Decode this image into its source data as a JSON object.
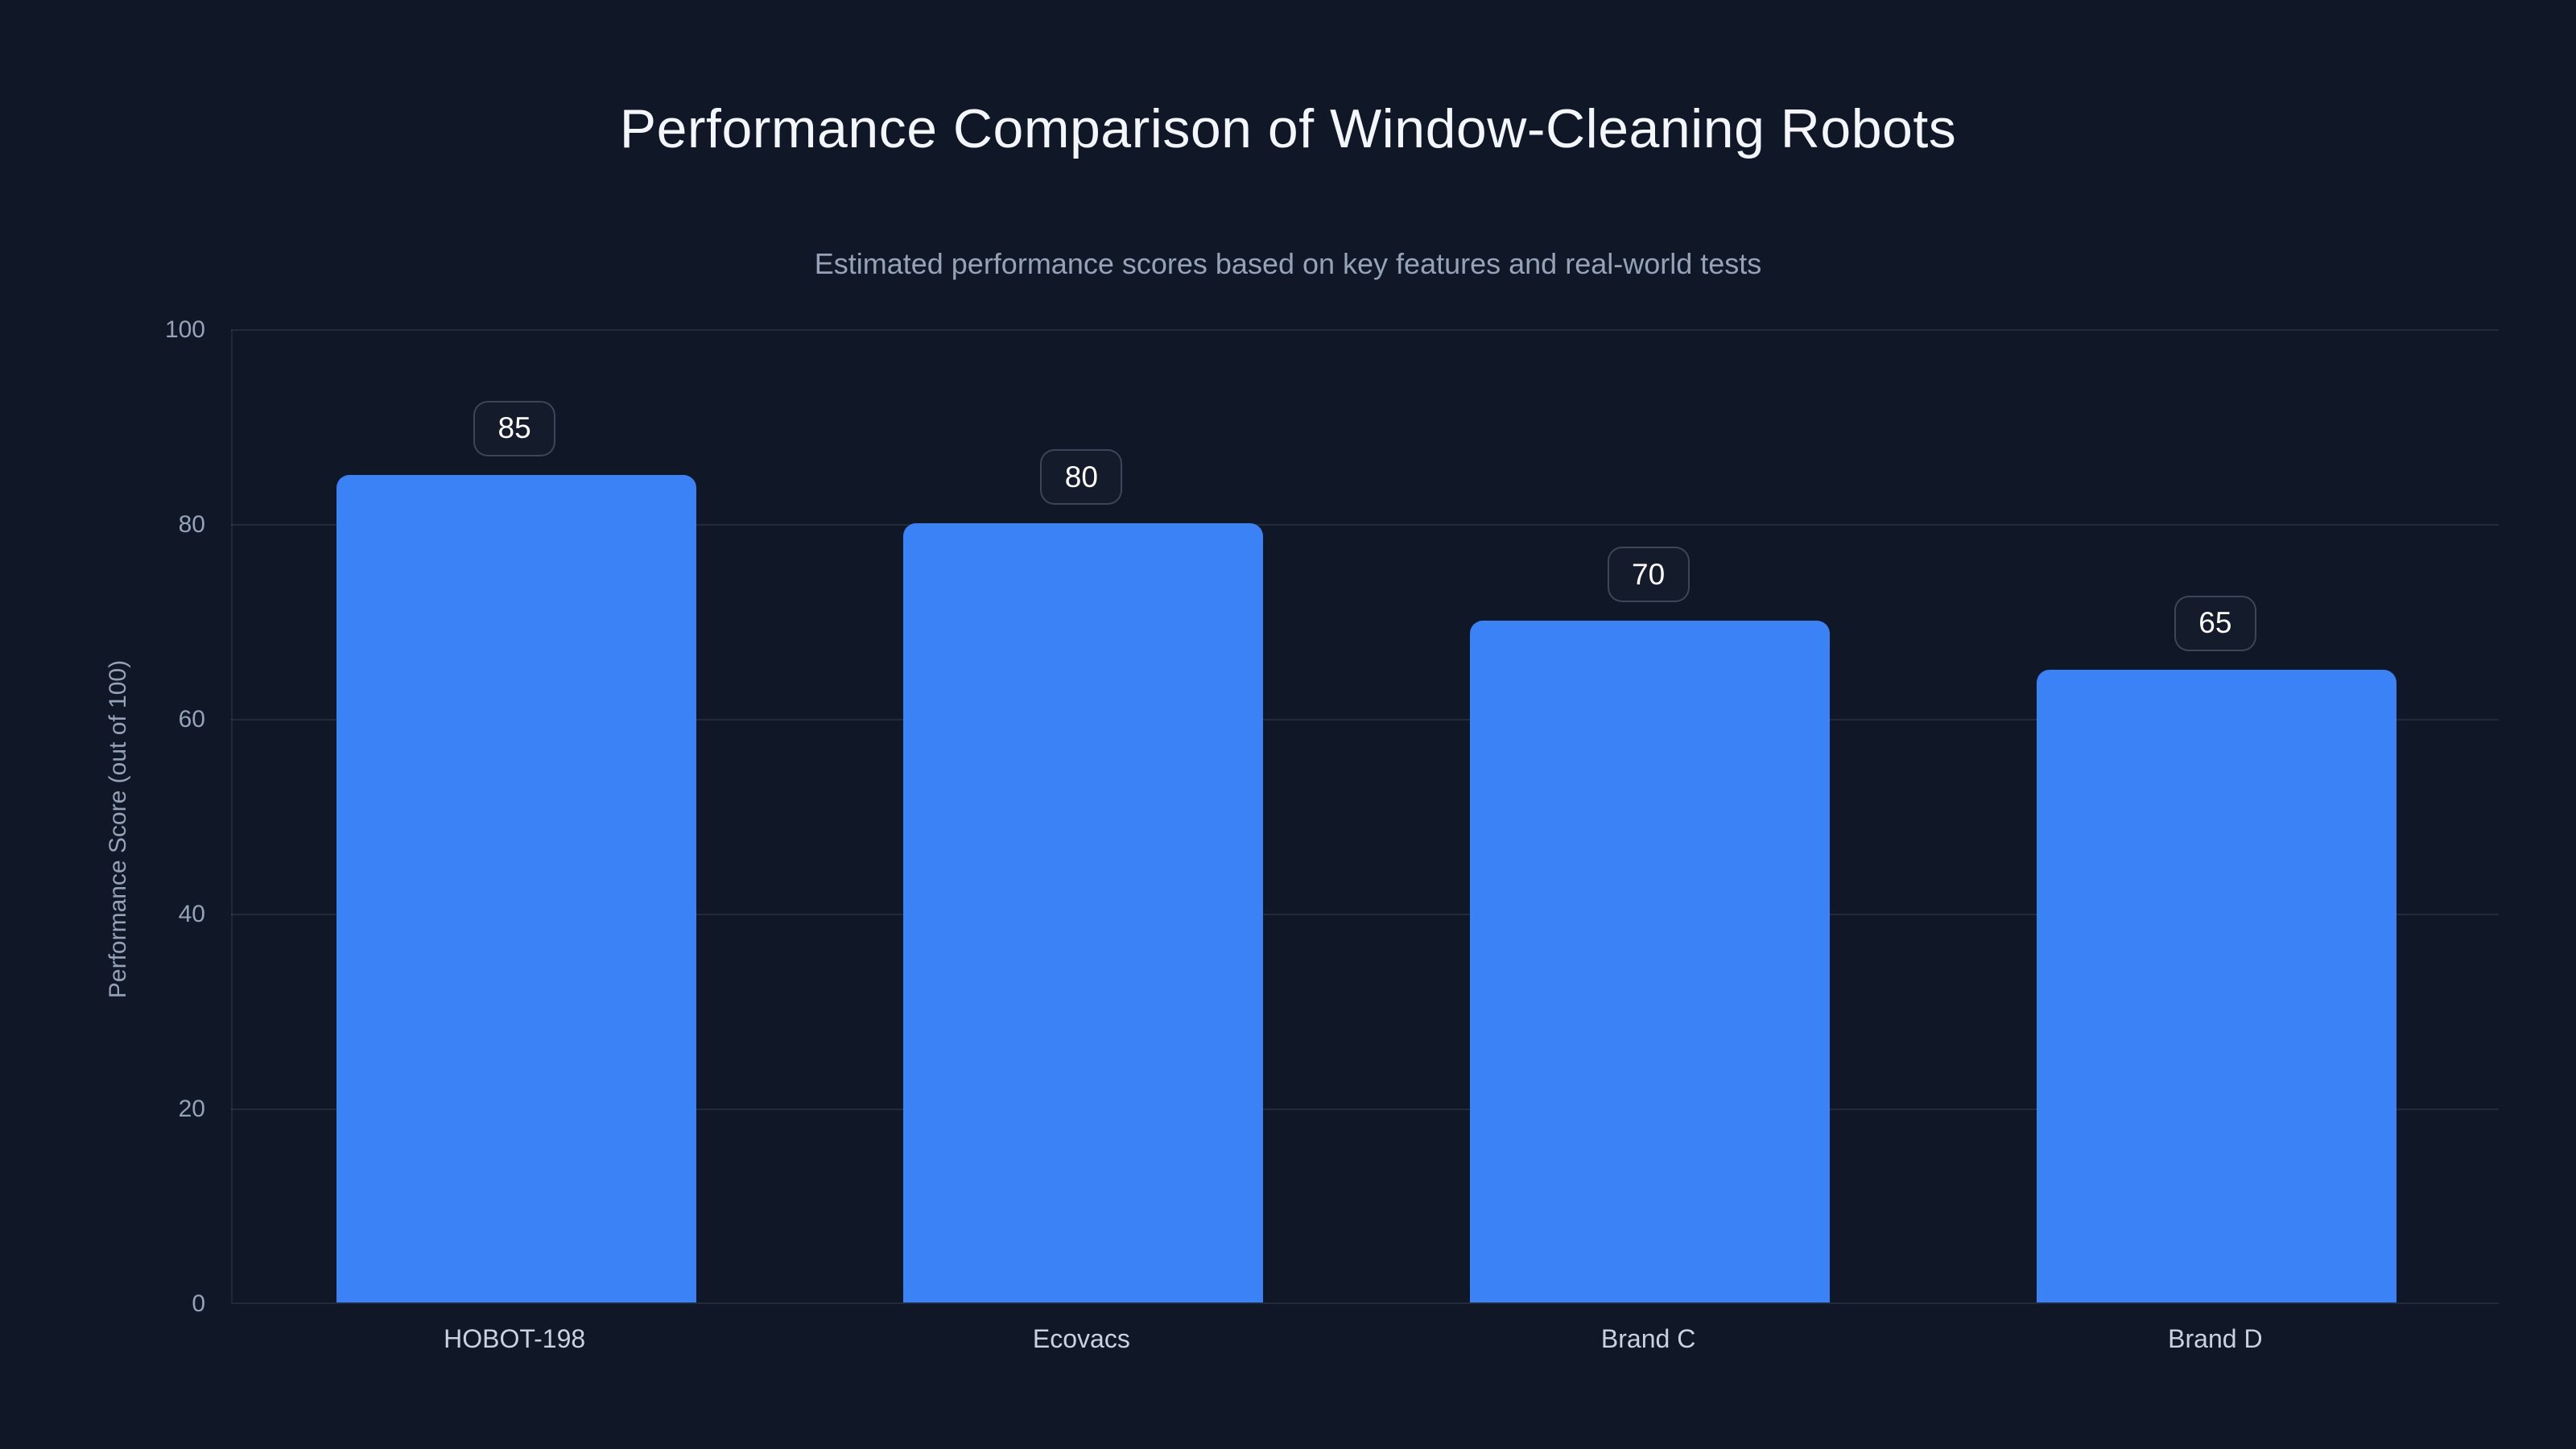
{
  "colors": {
    "background": "#101726",
    "bar": "#3b82f6",
    "title_text": "#f3f6fa",
    "subtitle_text": "#94a3b8",
    "axis_text": "#94a3b8",
    "category_text": "#c9d2e0",
    "badge_text": "#ffffff",
    "badge_border": "rgba(148,163,184,0.32)",
    "gridline": "rgba(148,163,184,0.15)"
  },
  "chart_data": {
    "type": "bar",
    "title": "Performance Comparison of Window-Cleaning Robots",
    "subtitle": "Estimated performance scores based on key features and real-world tests",
    "categories": [
      "HOBOT-198",
      "Ecovacs",
      "Brand C",
      "Brand D"
    ],
    "values": [
      85,
      80,
      70,
      65
    ],
    "value_labels": [
      "85",
      "80",
      "70",
      "65"
    ],
    "xlabel": "",
    "ylabel": "Performance Score (out of 100)",
    "ylim": [
      0,
      100
    ],
    "yticks": [
      0,
      20,
      40,
      60,
      80,
      100
    ],
    "grid": "horizontal",
    "legend_position": "none",
    "bar_color": "#3b82f6"
  }
}
